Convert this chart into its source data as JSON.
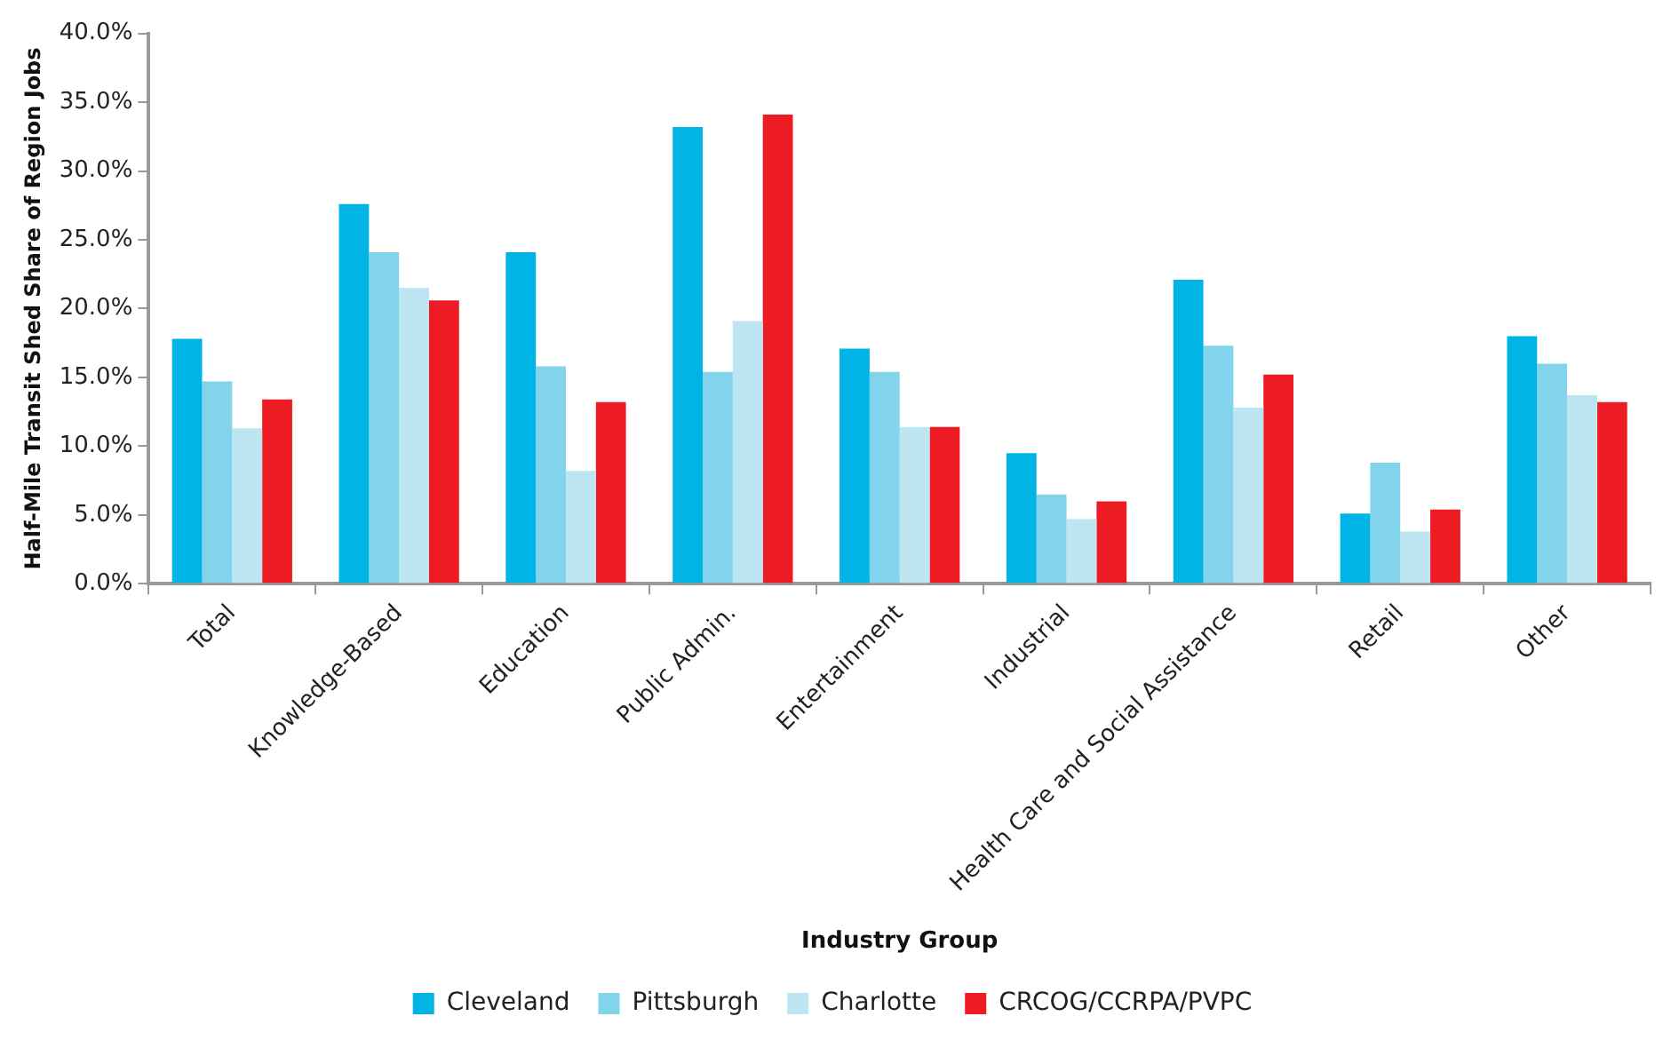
{
  "chart_data": {
    "type": "bar",
    "xlabel": "Industry Group",
    "ylabel": "Half-Mile Transit Shed Share of Region Jobs",
    "categories": [
      "Total",
      "Knowledge-Based",
      "Education",
      "Public Admin.",
      "Entertainment",
      "Industrial",
      "Health Care and Social Assistance",
      "Retail",
      "Other"
    ],
    "series": [
      {
        "name": "Cleveland",
        "color": "#00b5e6",
        "values": [
          17.8,
          27.6,
          24.1,
          33.2,
          17.1,
          9.5,
          22.1,
          5.1,
          18.0
        ]
      },
      {
        "name": "Pittsburgh",
        "color": "#82d3ec",
        "values": [
          14.7,
          24.1,
          15.8,
          15.4,
          15.4,
          6.5,
          17.3,
          8.8,
          16.0
        ]
      },
      {
        "name": "Charlotte",
        "color": "#bde5f2",
        "values": [
          11.3,
          21.5,
          8.2,
          19.1,
          11.4,
          4.7,
          12.8,
          3.8,
          13.7
        ]
      },
      {
        "name": "CRCOG/CCRPA/PVPC",
        "color": "#ed1c24",
        "values": [
          13.4,
          20.6,
          13.2,
          34.1,
          11.4,
          6.0,
          15.2,
          5.4,
          13.2
        ]
      }
    ],
    "ylim": [
      0,
      40
    ],
    "yticks": [
      {
        "value": 0,
        "label": "0.0%"
      },
      {
        "value": 5,
        "label": "5.0%"
      },
      {
        "value": 10,
        "label": "10.0%"
      },
      {
        "value": 15,
        "label": "15.0%"
      },
      {
        "value": 20,
        "label": "20.0%"
      },
      {
        "value": 25,
        "label": "25.0%"
      },
      {
        "value": 30,
        "label": "30.0%"
      },
      {
        "value": 35,
        "label": "35.0%"
      },
      {
        "value": 40,
        "label": "40.0%"
      }
    ],
    "grid": false,
    "legend": "bottom"
  }
}
